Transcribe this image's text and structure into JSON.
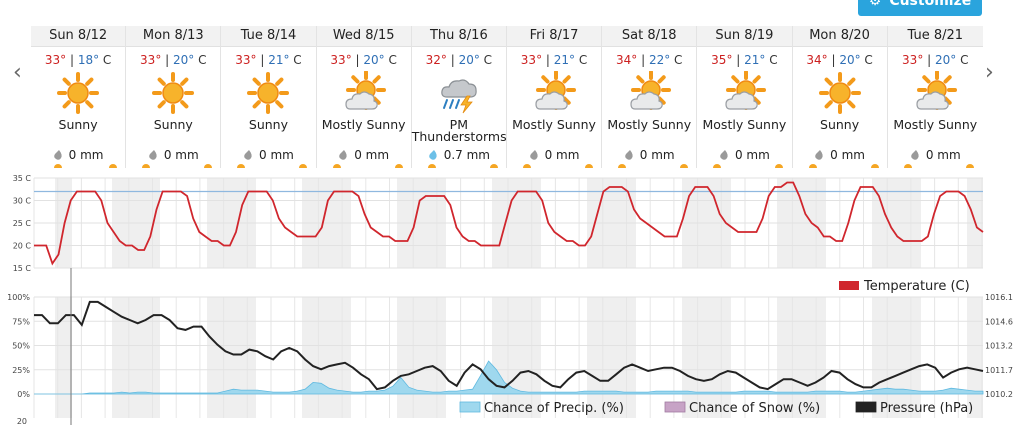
{
  "toolbar": {
    "customize_label": "Customize"
  },
  "nav": {
    "prev_icon": "chevron-left-icon",
    "next_icon": "chevron-right-icon"
  },
  "days": [
    {
      "date": "Sun 8/12",
      "hi": "33°",
      "lo": "18°",
      "unit": "C",
      "icon": "sunny",
      "condition": "Sunny",
      "precip": "0 mm"
    },
    {
      "date": "Mon 8/13",
      "hi": "33°",
      "lo": "20°",
      "unit": "C",
      "icon": "sunny",
      "condition": "Sunny",
      "precip": "0 mm"
    },
    {
      "date": "Tue 8/14",
      "hi": "33°",
      "lo": "21°",
      "unit": "C",
      "icon": "sunny",
      "condition": "Sunny",
      "precip": "0 mm"
    },
    {
      "date": "Wed 8/15",
      "hi": "33°",
      "lo": "20°",
      "unit": "C",
      "icon": "mostly-sunny",
      "condition": "Mostly Sunny",
      "precip": "0 mm"
    },
    {
      "date": "Thu 8/16",
      "hi": "32°",
      "lo": "20°",
      "unit": "C",
      "icon": "thunderstorm",
      "condition": "PM Thunderstorms",
      "precip": "0.7 mm"
    },
    {
      "date": "Fri 8/17",
      "hi": "33°",
      "lo": "21°",
      "unit": "C",
      "icon": "mostly-sunny",
      "condition": "Mostly Sunny",
      "precip": "0 mm"
    },
    {
      "date": "Sat 8/18",
      "hi": "34°",
      "lo": "22°",
      "unit": "C",
      "icon": "mostly-sunny",
      "condition": "Mostly Sunny",
      "precip": "0 mm"
    },
    {
      "date": "Sun 8/19",
      "hi": "35°",
      "lo": "21°",
      "unit": "C",
      "icon": "mostly-sunny",
      "condition": "Mostly Sunny",
      "precip": "0 mm"
    },
    {
      "date": "Mon 8/20",
      "hi": "34°",
      "lo": "20°",
      "unit": "C",
      "icon": "sunny",
      "condition": "Sunny",
      "precip": "0 mm"
    },
    {
      "date": "Tue 8/21",
      "hi": "33°",
      "lo": "20°",
      "unit": "C",
      "icon": "mostly-sunny",
      "condition": "Mostly Sunny",
      "precip": "0 mm"
    }
  ],
  "colors": {
    "temperature": "#d0262d",
    "precip": "#9fd8ee",
    "snow": "#c7a3c6",
    "pressure": "#222222",
    "reference": "#8fb8df",
    "hi": "#cc1f1f",
    "lo": "#2f6fb5"
  },
  "chart_data": [
    {
      "type": "line",
      "ylim": [
        15,
        35
      ],
      "yticks": [
        "35 C",
        "30 C",
        "25 C",
        "20 C",
        "15 C"
      ],
      "reference_line": 32,
      "series": [
        {
          "name": "Temperature (C)",
          "values": [
            20,
            20,
            20,
            16,
            18,
            25,
            30,
            32,
            32,
            32,
            32,
            30,
            25,
            23,
            21,
            20,
            20,
            19,
            19,
            22,
            28,
            32,
            32,
            32,
            32,
            31,
            26,
            23,
            22,
            21,
            21,
            20,
            20,
            23,
            29,
            32,
            32,
            32,
            32,
            30,
            26,
            24,
            23,
            22,
            22,
            22,
            22,
            24,
            30,
            32,
            32,
            32,
            32,
            31,
            27,
            24,
            23,
            22,
            22,
            21,
            21,
            21,
            24,
            30,
            31,
            31,
            31,
            31,
            29,
            24,
            22,
            21,
            21,
            20,
            20,
            20,
            20,
            25,
            30,
            32,
            32,
            32,
            32,
            30,
            25,
            23,
            22,
            21,
            21,
            20,
            20,
            22,
            27,
            32,
            33,
            33,
            33,
            32,
            28,
            26,
            25,
            24,
            23,
            22,
            22,
            22,
            26,
            31,
            33,
            33,
            33,
            31,
            27,
            25,
            24,
            23,
            23,
            23,
            23,
            26,
            31,
            33,
            33,
            34,
            34,
            31,
            27,
            25,
            24,
            22,
            22,
            21,
            21,
            25,
            30,
            33,
            33,
            33,
            31,
            27,
            24,
            22,
            21,
            21,
            21,
            21,
            22,
            27,
            31,
            32,
            32,
            32,
            31,
            28,
            24,
            23
          ]
        }
      ],
      "legend": [
        "Temperature (C)"
      ]
    },
    {
      "type": "line",
      "ylim_left": [
        0,
        100
      ],
      "yticks_left": [
        "100%",
        "75%",
        "50%",
        "25%",
        "0%"
      ],
      "ylim_right": [
        1010.2,
        1016.1
      ],
      "yticks_right": [
        "1016.1",
        "1014.6",
        "1013.2",
        "1011.7",
        "1010.2"
      ],
      "lower_tick": "20",
      "series": [
        {
          "name": "Pressure (hPa)",
          "axis": "right",
          "values": [
            1015.0,
            1015.0,
            1014.5,
            1014.5,
            1015.0,
            1015.0,
            1014.4,
            1015.8,
            1015.8,
            1015.5,
            1015.2,
            1014.9,
            1014.7,
            1014.5,
            1014.7,
            1015.0,
            1015.0,
            1014.7,
            1014.2,
            1014.1,
            1014.3,
            1014.3,
            1013.7,
            1013.2,
            1012.8,
            1012.6,
            1012.6,
            1012.9,
            1012.8,
            1012.5,
            1012.3,
            1012.8,
            1013.0,
            1012.8,
            1012.3,
            1011.9,
            1011.7,
            1011.9,
            1012.0,
            1012.1,
            1011.8,
            1011.4,
            1011.1,
            1010.5,
            1010.6,
            1011.0,
            1011.3,
            1011.4,
            1011.6,
            1011.8,
            1011.9,
            1011.6,
            1011.0,
            1010.7,
            1011.5,
            1012.0,
            1011.7,
            1011.1,
            1010.7,
            1010.6,
            1011.0,
            1011.5,
            1011.6,
            1011.4,
            1011.0,
            1010.7,
            1010.6,
            1011.1,
            1011.5,
            1011.6,
            1011.3,
            1011.0,
            1011.0,
            1011.4,
            1011.8,
            1012.0,
            1011.8,
            1011.6,
            1011.7,
            1011.8,
            1011.8,
            1011.6,
            1011.3,
            1011.1,
            1011.0,
            1011.1,
            1011.4,
            1011.6,
            1011.5,
            1011.2,
            1010.9,
            1010.6,
            1010.5,
            1010.8,
            1011.1,
            1011.1,
            1010.9,
            1010.7,
            1010.9,
            1011.2,
            1011.6,
            1011.5,
            1011.1,
            1010.8,
            1010.6,
            1010.6,
            1010.9,
            1011.1,
            1011.3,
            1011.5,
            1011.7,
            1011.9,
            1012.0,
            1011.8,
            1011.2,
            1011.5,
            1011.7,
            1011.8,
            1011.7,
            1011.6
          ]
        },
        {
          "name": "Chance of Precip. (%)",
          "axis": "left",
          "values": [
            0,
            0,
            0,
            0,
            0,
            0,
            0,
            1,
            1,
            1,
            1,
            2,
            1,
            2,
            2,
            1,
            1,
            1,
            1,
            1,
            1,
            1,
            1,
            1,
            3,
            5,
            4,
            4,
            4,
            3,
            2,
            2,
            2,
            3,
            5,
            12,
            11,
            6,
            4,
            3,
            2,
            2,
            3,
            3,
            4,
            8,
            17,
            7,
            4,
            3,
            2,
            2,
            3,
            3,
            4,
            5,
            19,
            34,
            25,
            12,
            6,
            3,
            2,
            2,
            2,
            2,
            2,
            2,
            2,
            3,
            3,
            3,
            3,
            3,
            2,
            2,
            2,
            2,
            3,
            3,
            3,
            3,
            3,
            2,
            2,
            2,
            2,
            2,
            2,
            3,
            3,
            3,
            3,
            2,
            2,
            2,
            2,
            2,
            3,
            3,
            3,
            3,
            2,
            2,
            3,
            4,
            5,
            6,
            5,
            5,
            4,
            3,
            3,
            3,
            4,
            6,
            5,
            4,
            3,
            3
          ]
        },
        {
          "name": "Chance of Snow (%)",
          "axis": "left",
          "values": []
        }
      ],
      "legend": [
        "Chance of Precip. (%)",
        "Chance of Snow (%)",
        "Pressure (hPa)"
      ]
    }
  ]
}
